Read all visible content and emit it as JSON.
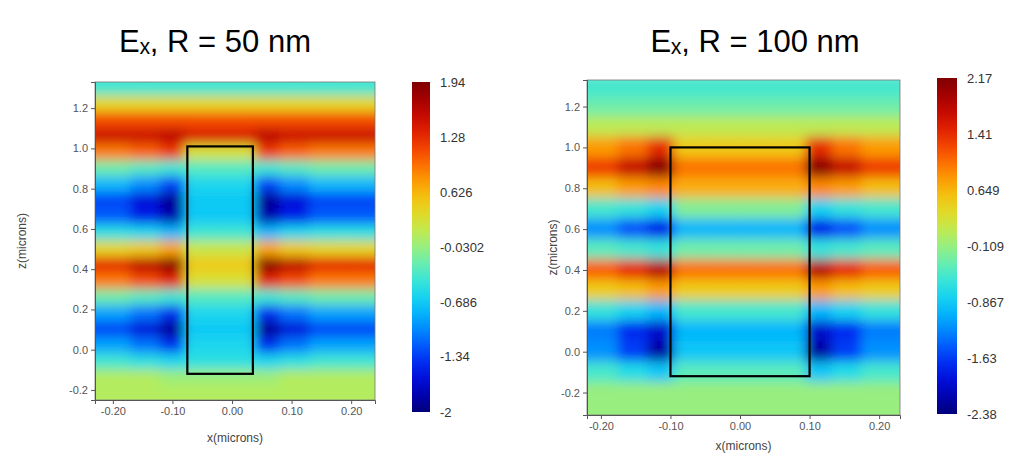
{
  "chart_data": [
    {
      "type": "heatmap",
      "title": "Eₓ, R = 50 nm",
      "x_label": "x(microns)",
      "y_label": "z(microns)",
      "xlim": [
        -0.23,
        0.24
      ],
      "ylim": [
        -0.25,
        1.33
      ],
      "xticks": [
        {
          "value": -0.2,
          "label": "-0.20"
        },
        {
          "value": -0.1,
          "label": "-0.10"
        },
        {
          "value": 0,
          "label": "0.00"
        },
        {
          "value": 0.1,
          "label": "0.10"
        },
        {
          "value": 0.2,
          "label": "0.20"
        }
      ],
      "yticks": [
        -0.2,
        {
          "value": 0,
          "label": "0.0"
        },
        0.2,
        0.4,
        0.6,
        0.8,
        {
          "value": 1,
          "label": "1.0"
        },
        1.2
      ],
      "x": [
        -0.2,
        -0.14,
        -0.1,
        -0.06,
        -0.02,
        0.02,
        0.06,
        0.1,
        0.16,
        0.22
      ],
      "y": [
        1.3,
        1.22,
        1.14,
        1.06,
        0.98,
        0.9,
        0.82,
        0.74,
        0.66,
        0.58,
        0.5,
        0.42,
        0.34,
        0.26,
        0.18,
        0.1,
        0.02,
        -0.06,
        -0.14,
        -0.22
      ],
      "cells": [
        [
          -0.4,
          -0.4,
          -0.4,
          -0.4,
          -0.4,
          -0.4,
          -0.4,
          -0.4,
          -0.4,
          -0.4
        ],
        [
          0.4,
          0.4,
          0.4,
          0.4,
          0.4,
          0.4,
          0.4,
          0.4,
          0.4,
          0.4
        ],
        [
          1.1,
          1.1,
          1.1,
          1.1,
          1.1,
          1.1,
          1.1,
          1.1,
          1.1,
          1.1
        ],
        [
          1.5,
          1.5,
          1.6,
          1.4,
          1.4,
          1.4,
          1.6,
          1.5,
          1.5,
          1.5
        ],
        [
          0.9,
          1.0,
          1.2,
          0.3,
          0.3,
          0.3,
          1.2,
          1.0,
          0.9,
          0.9
        ],
        [
          -0.2,
          -0.3,
          -0.4,
          -0.3,
          -0.3,
          -0.3,
          -0.4,
          -0.3,
          -0.2,
          -0.2
        ],
        [
          -0.8,
          -1.0,
          -1.3,
          -0.6,
          -0.6,
          -0.6,
          -1.3,
          -1.0,
          -0.8,
          -0.8
        ],
        [
          -1.3,
          -1.6,
          -1.9,
          -0.7,
          -0.7,
          -0.7,
          -1.9,
          -1.6,
          -1.3,
          -1.3
        ],
        [
          -1.2,
          -1.5,
          -1.8,
          -0.7,
          -0.7,
          -0.7,
          -1.8,
          -1.5,
          -1.2,
          -1.2
        ],
        [
          -0.5,
          -0.6,
          -0.8,
          -0.4,
          -0.4,
          -0.4,
          -0.8,
          -0.6,
          -0.5,
          -0.5
        ],
        [
          0.4,
          0.5,
          0.7,
          0.2,
          0.2,
          0.2,
          0.7,
          0.5,
          0.4,
          0.4
        ],
        [
          1.3,
          1.6,
          1.9,
          0.5,
          0.5,
          0.5,
          1.9,
          1.6,
          1.3,
          1.3
        ],
        [
          0.9,
          1.1,
          1.3,
          0.3,
          0.3,
          0.3,
          1.3,
          1.1,
          0.9,
          0.9
        ],
        [
          -0.2,
          -0.3,
          -0.4,
          -0.3,
          -0.3,
          -0.3,
          -0.4,
          -0.3,
          -0.2,
          -0.2
        ],
        [
          -0.9,
          -1.1,
          -1.4,
          -0.6,
          -0.6,
          -0.6,
          -1.4,
          -1.1,
          -0.9,
          -0.9
        ],
        [
          -1.3,
          -1.6,
          -1.9,
          -0.7,
          -0.7,
          -0.7,
          -1.9,
          -1.6,
          -1.3,
          -1.3
        ],
        [
          -0.9,
          -1.1,
          -1.4,
          -0.6,
          -0.6,
          -0.6,
          -1.4,
          -1.1,
          -0.9,
          -0.9
        ],
        [
          -0.4,
          -0.5,
          -0.6,
          -0.5,
          -0.5,
          -0.5,
          -0.6,
          -0.5,
          -0.4,
          -0.4
        ],
        [
          0.1,
          0.1,
          0.0,
          0.0,
          0.0,
          0.0,
          0.0,
          0.1,
          0.1,
          0.1
        ],
        [
          0.1,
          0.1,
          0.1,
          0.1,
          0.1,
          0.1,
          0.1,
          0.1,
          0.1,
          0.1
        ]
      ],
      "colorbar": {
        "range": [
          -2,
          1.94
        ],
        "ticks": [
          1.94,
          1.28,
          0.626,
          -0.0302,
          -0.686,
          -1.34,
          -2
        ]
      },
      "outline": {
        "x": [
          -0.075,
          0.035
        ],
        "y": [
          -0.12,
          1.01
        ]
      }
    },
    {
      "type": "heatmap",
      "title": "Eₓ, R = 100 nm",
      "x_label": "x(microns)",
      "y_label": "z(microns)",
      "xlim": [
        -0.22,
        0.23
      ],
      "ylim": [
        -0.31,
        1.33
      ],
      "xticks": [
        {
          "value": -0.2,
          "label": "-0.20"
        },
        {
          "value": -0.1,
          "label": "-0.10"
        },
        {
          "value": 0,
          "label": "0.00"
        },
        {
          "value": 0.1,
          "label": "0.10"
        },
        {
          "value": 0.2,
          "label": "0.20"
        }
      ],
      "yticks": [
        -0.2,
        {
          "value": 0,
          "label": "0.0"
        },
        0.2,
        0.4,
        0.6,
        0.8,
        {
          "value": 1,
          "label": "1.0"
        },
        1.2
      ],
      "x": [
        -0.2,
        -0.15,
        -0.115,
        -0.075,
        -0.025,
        0.025,
        0.075,
        0.115,
        0.15,
        0.2
      ],
      "y": [
        1.28,
        1.2,
        1.1,
        1.0,
        0.9,
        0.8,
        0.7,
        0.6,
        0.5,
        0.4,
        0.3,
        0.2,
        0.1,
        0.0,
        -0.1,
        -0.2,
        -0.28
      ],
      "cells": [
        [
          -0.5,
          -0.5,
          -0.5,
          -0.5,
          -0.5,
          -0.5,
          -0.5,
          -0.5,
          -0.5,
          -0.5
        ],
        [
          -0.3,
          -0.3,
          -0.3,
          -0.3,
          -0.3,
          -0.3,
          -0.3,
          -0.3,
          -0.3,
          -0.3
        ],
        [
          0.1,
          0.1,
          0.1,
          0.1,
          0.1,
          0.1,
          0.1,
          0.1,
          0.1,
          0.1
        ],
        [
          0.8,
          1.0,
          1.4,
          0.5,
          0.5,
          0.5,
          0.5,
          1.4,
          1.0,
          0.8
        ],
        [
          1.3,
          1.7,
          2.1,
          1.0,
          1.0,
          1.0,
          1.0,
          2.1,
          1.7,
          1.3
        ],
        [
          0.6,
          0.8,
          0.9,
          0.7,
          0.7,
          0.7,
          0.7,
          0.9,
          0.8,
          0.6
        ],
        [
          -0.5,
          -0.6,
          -0.8,
          -0.2,
          -0.2,
          -0.2,
          -0.2,
          -0.8,
          -0.6,
          -0.5
        ],
        [
          -1.2,
          -1.5,
          -1.8,
          -1.0,
          -1.0,
          -1.0,
          -1.0,
          -1.8,
          -1.5,
          -1.2
        ],
        [
          -0.4,
          -0.5,
          -0.6,
          -0.3,
          -0.3,
          -0.3,
          -0.3,
          -0.6,
          -0.5,
          -0.4
        ],
        [
          1.1,
          1.4,
          1.8,
          1.0,
          1.0,
          1.0,
          1.0,
          1.8,
          1.4,
          1.1
        ],
        [
          0.5,
          0.6,
          0.8,
          0.5,
          0.5,
          0.5,
          0.5,
          0.8,
          0.6,
          0.5
        ],
        [
          -0.6,
          -0.8,
          -1.0,
          -0.5,
          -0.5,
          -0.5,
          -0.5,
          -1.0,
          -0.8,
          -0.6
        ],
        [
          -1.3,
          -1.7,
          -2.0,
          -1.0,
          -1.0,
          -1.0,
          -1.0,
          -2.0,
          -1.7,
          -1.3
        ],
        [
          -1.2,
          -1.6,
          -2.2,
          -0.9,
          -0.9,
          -0.9,
          -0.9,
          -2.2,
          -1.6,
          -1.2
        ],
        [
          -0.5,
          -0.7,
          -0.9,
          -0.4,
          -0.4,
          -0.4,
          -0.4,
          -0.9,
          -0.7,
          -0.5
        ],
        [
          -0.1,
          -0.1,
          -0.1,
          -0.1,
          -0.1,
          -0.1,
          -0.1,
          -0.1,
          -0.1,
          -0.1
        ],
        [
          -0.1,
          -0.1,
          -0.1,
          -0.1,
          -0.1,
          -0.1,
          -0.1,
          -0.1,
          -0.1,
          -0.1
        ]
      ],
      "colorbar": {
        "range": [
          -2.38,
          2.17
        ],
        "ticks": [
          2.17,
          1.41,
          0.649,
          -0.109,
          -0.867,
          -1.63,
          -2.38
        ]
      },
      "outline": {
        "x": [
          -0.1,
          0.1
        ],
        "y": [
          -0.12,
          1.0
        ]
      }
    }
  ]
}
